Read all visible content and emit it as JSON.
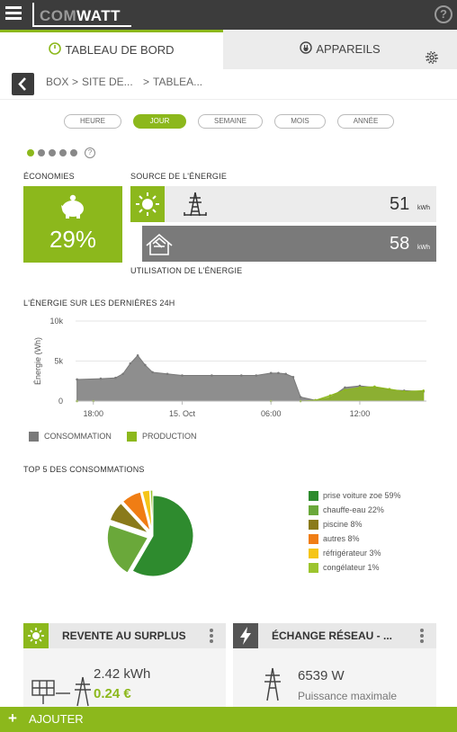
{
  "app": {
    "logo_prefix": "COM",
    "logo_suffix": "WATT",
    "help": "?"
  },
  "tabs": [
    {
      "label": "TABLEAU DE BORD",
      "active": true
    },
    {
      "label": "APPAREILS",
      "active": false
    }
  ],
  "breadcrumb": [
    "BOX",
    "SITE DE...",
    "TABLEA..."
  ],
  "periods": [
    {
      "label": "HEURE",
      "active": false
    },
    {
      "label": "JOUR",
      "active": true
    },
    {
      "label": "SEMAINE",
      "active": false
    },
    {
      "label": "MOIS",
      "active": false
    },
    {
      "label": "ANNÉE",
      "active": false
    }
  ],
  "pager": {
    "count": 5,
    "active_index": 0,
    "help": "?"
  },
  "economies": {
    "title": "ÉCONOMIES",
    "value": "29%"
  },
  "energy_source": {
    "title": "SOURCE DE L'ÉNERGIE",
    "rows": [
      {
        "value": "51",
        "unit": "kWh",
        "icon": "pylon-icon"
      },
      {
        "value": "58",
        "unit": "kWh",
        "icon": "solar-house-icon"
      }
    ],
    "usage_title": "UTILISATION DE L'ÉNERGIE"
  },
  "energy_chart_title": "L'ÉNERGIE SUR LES DERNIÈRES 24H",
  "legend": [
    {
      "label": "CONSOMMATION",
      "color": "#7a7a7a"
    },
    {
      "label": "PRODUCTION",
      "color": "#8cb81c"
    }
  ],
  "top5_title": "TOP 5 DES CONSOMMATIONS",
  "chart_data": [
    {
      "type": "area",
      "title": "L'ÉNERGIE SUR LES DERNIÈRES 24H",
      "ylabel": "Énergie (Wh)",
      "y_ticks": [
        "0",
        "5k",
        "10k"
      ],
      "ylim": [
        0,
        10000
      ],
      "x_ticks": [
        "18:00",
        "15. Oct",
        "06:00",
        "12:00"
      ],
      "x_hours": [
        0,
        6,
        12,
        18
      ],
      "x_range_hours": [
        -1.2,
        22.5
      ],
      "series": [
        {
          "name": "CONSOMMATION",
          "color": "#7a7a7a",
          "x": [
            -1.1,
            0.5,
            1.5,
            2.0,
            2.5,
            3.0,
            3.5,
            4.0,
            5.0,
            6.0,
            8.0,
            10.0,
            11.0,
            12.0,
            12.5,
            13.0,
            13.5,
            14.0,
            15.0,
            16.0,
            17.0,
            18.0,
            19.0,
            20.0,
            21.0,
            22.3
          ],
          "y": [
            2700,
            2800,
            2900,
            3400,
            4700,
            5700,
            4500,
            3600,
            3400,
            3200,
            3200,
            3200,
            3200,
            3500,
            3500,
            3400,
            3000,
            500,
            100,
            400,
            1700,
            1900,
            1700,
            1400,
            1300,
            1200
          ]
        },
        {
          "name": "PRODUCTION",
          "color": "#8cb81c",
          "x": [
            -1.1,
            0.0,
            12.0,
            14.0,
            15.0,
            16.0,
            17.0,
            18.0,
            19.0,
            20.0,
            21.0,
            22.3
          ],
          "y": [
            0,
            0,
            0,
            0,
            100,
            700,
            1400,
            1700,
            1800,
            1500,
            1200,
            1300
          ]
        }
      ],
      "legend_position": "bottom-left",
      "grid": true
    },
    {
      "type": "pie",
      "title": "TOP 5 DES CONSOMMATIONS",
      "labels": [
        "prise voiture zoe 59%",
        "chauffe-eau 22%",
        "piscine 8%",
        "autres 8%",
        "réfrigérateur 3%",
        "congélateur 1%"
      ],
      "values": [
        59,
        22,
        8,
        8,
        3,
        1
      ],
      "colors": [
        "#2e8b2e",
        "#6aa83a",
        "#8a7a1a",
        "#f07d14",
        "#f5c518",
        "#9cc42e"
      ]
    }
  ],
  "cards": [
    {
      "title": "REVENTE AU SURPLUS",
      "value": "2.42 kWh",
      "value2": "0.24 €",
      "icon": "sun-icon"
    },
    {
      "title": "ÉCHANGE RÉSEAU - ...",
      "value": "6539 W",
      "subtitle": "Puissance maximale",
      "icon": "lightning-icon"
    }
  ],
  "bottom": {
    "plus": "+",
    "label": "AJOUTER"
  },
  "colors": {
    "accent": "#8cb81c",
    "dark": "#3c3c3c",
    "grey": "#7a7a7a"
  }
}
